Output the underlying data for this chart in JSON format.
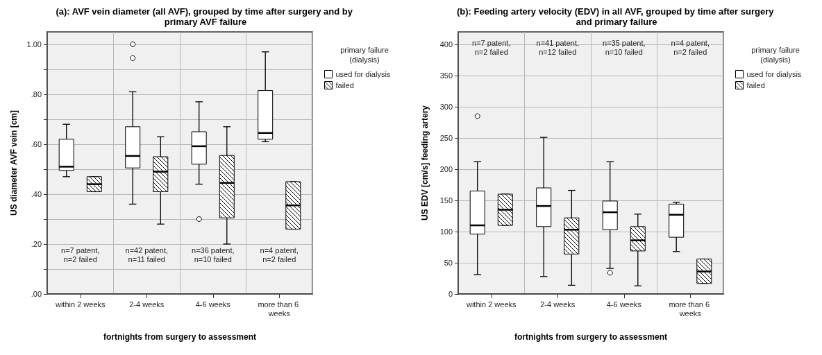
{
  "chart_data": [
    {
      "type": "box",
      "title": "(a): AVF vein diameter (all AVF), grouped by time after surgery and by primary AVF failure",
      "xlabel": "fortnights from surgery to assessment",
      "ylabel": "US diameter AVF vein [cm]",
      "legend_title": "primary failure\n(dialysis)",
      "legend": "right",
      "grid": true,
      "categories": [
        "within 2 weeks",
        "2-4 weeks",
        "4-6 weeks",
        "more than 6 weeks"
      ],
      "ylim": [
        0,
        1.05
      ],
      "yticks": [
        {
          "value": 0,
          "label": ".00"
        },
        {
          "value": 0.1,
          "label": null
        },
        {
          "value": 0.2,
          "label": ".20"
        },
        {
          "value": 0.3,
          "label": null
        },
        {
          "value": 0.4,
          "label": ".40"
        },
        {
          "value": 0.5,
          "label": null
        },
        {
          "value": 0.6,
          "label": ".60"
        },
        {
          "value": 0.7,
          "label": null
        },
        {
          "value": 0.8,
          "label": ".80"
        },
        {
          "value": 0.9,
          "label": null
        },
        {
          "value": 1,
          "label": "1.00"
        }
      ],
      "series": [
        {
          "name": "used for dialysis",
          "color": "#ffffff",
          "boxes": [
            {
              "low": 0.47,
              "q1": 0.495,
              "median": 0.51,
              "q3": 0.62,
              "high": 0.68
            },
            {
              "low": 0.36,
              "q1": 0.505,
              "median": 0.553,
              "q3": 0.67,
              "high": 0.81,
              "outliers": [
                0.945,
                1.0
              ]
            },
            {
              "low": 0.44,
              "q1": 0.52,
              "median": 0.592,
              "q3": 0.65,
              "high": 0.77,
              "outliers": [
                0.3
              ]
            },
            {
              "low": 0.61,
              "q1": 0.62,
              "median": 0.645,
              "q3": 0.815,
              "high": 0.97
            }
          ]
        },
        {
          "name": "failed",
          "color": "#000000",
          "boxes": [
            {
              "low": 0.41,
              "q1": 0.41,
              "median": 0.44,
              "q3": 0.47,
              "high": 0.47
            },
            {
              "low": 0.28,
              "q1": 0.41,
              "median": 0.49,
              "q3": 0.55,
              "high": 0.63
            },
            {
              "low": 0.2,
              "q1": 0.305,
              "median": 0.445,
              "q3": 0.555,
              "high": 0.67
            },
            {
              "low": 0.26,
              "q1": 0.26,
              "median": 0.355,
              "q3": 0.45,
              "high": 0.45
            }
          ]
        }
      ],
      "annotations": [
        "n=7 patent,\nn=2 failed",
        "n=42 patent,\nn=11 failed",
        "n=36 patent,\nn=10 failed",
        "n=4 patent,\nn=2 failed"
      ]
    },
    {
      "type": "box",
      "title": "(b): Feeding artery velocity (EDV) in all AVF, grouped by time after surgery and primary failure",
      "xlabel": "fortnights from surgery to assessment",
      "ylabel": "US EDV [cm/s] feeding artery",
      "legend_title": "primary failure\n(dialysis)",
      "legend": "right",
      "grid": true,
      "categories": [
        "within 2 weeks",
        "2-4 weeks",
        "4-6 weeks",
        "more than 6 weeks"
      ],
      "ylim": [
        0,
        420
      ],
      "yticks": [
        0,
        50,
        100,
        150,
        200,
        250,
        300,
        350,
        400
      ],
      "series": [
        {
          "name": "used for dialysis",
          "color": "#ffffff",
          "boxes": [
            {
              "low": 31,
              "q1": 96,
              "median": 110,
              "q3": 165,
              "high": 212,
              "outliers": [
                285
              ]
            },
            {
              "low": 28,
              "q1": 108,
              "median": 141,
              "q3": 170,
              "high": 251
            },
            {
              "low": 41,
              "q1": 103,
              "median": 131,
              "q3": 149,
              "high": 212,
              "outliers": [
                34
              ]
            },
            {
              "low": 68,
              "q1": 91,
              "median": 127,
              "q3": 144,
              "high": 147
            }
          ]
        },
        {
          "name": "failed",
          "color": "#000000",
          "boxes": [
            {
              "low": 110,
              "q1": 110,
              "median": 135,
              "q3": 160,
              "high": 160
            },
            {
              "low": 14,
              "q1": 64,
              "median": 103,
              "q3": 122,
              "high": 166
            },
            {
              "low": 13,
              "q1": 69,
              "median": 86,
              "q3": 108,
              "high": 128
            },
            {
              "low": 17,
              "q1": 17,
              "median": 36,
              "q3": 56,
              "high": 56
            }
          ]
        }
      ],
      "annotations": [
        "n=7 patent,\nn=2 failed",
        "n=41 patent,\nn=12 failed",
        "n=35 patent,\nn=10 failed",
        "n=4 patent,\nn=2 failed"
      ]
    }
  ]
}
